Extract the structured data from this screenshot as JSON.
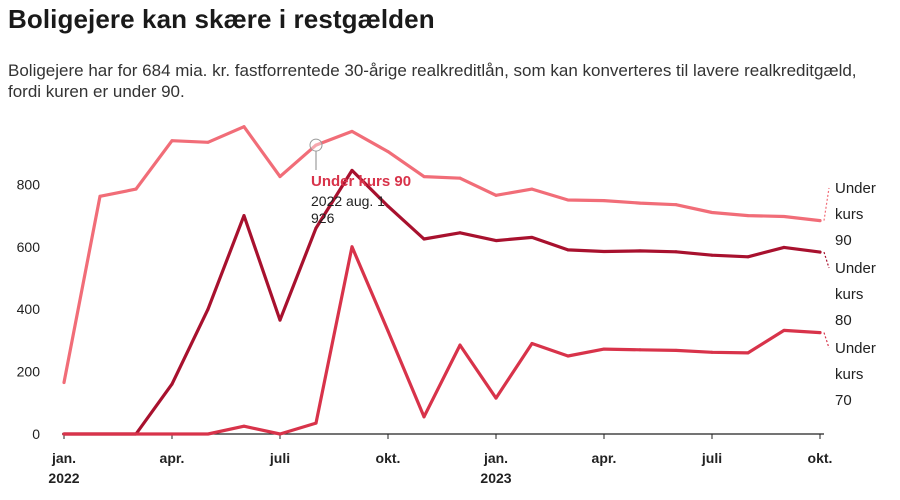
{
  "header": {
    "title": "Boligejere kan skære i restgælden",
    "subtitle": "Boligejere har for 684 mia. kr. fastforrentede 30-årige realkreditlån, som kan konverteres til lavere realkreditgæld, fordi kuren er under 90."
  },
  "tooltip": {
    "title": "Under kurs 90",
    "date": "2022 aug. 1",
    "value": "926"
  },
  "chart_data": {
    "type": "line",
    "title": "Boligejere kan skære i restgælden",
    "x": [
      "2022-01",
      "2022-02",
      "2022-03",
      "2022-04",
      "2022-05",
      "2022-06",
      "2022-07",
      "2022-08",
      "2022-09",
      "2022-10",
      "2022-11",
      "2022-12",
      "2023-01",
      "2023-02",
      "2023-03",
      "2023-04",
      "2023-05",
      "2023-06",
      "2023-07",
      "2023-08",
      "2023-09",
      "2023-10"
    ],
    "x_tick_labels": [
      {
        "x": "2022-01",
        "line1": "jan.",
        "line2": "2022"
      },
      {
        "x": "2022-04",
        "line1": "apr.",
        "line2": ""
      },
      {
        "x": "2022-07",
        "line1": "juli",
        "line2": ""
      },
      {
        "x": "2022-10",
        "line1": "okt.",
        "line2": ""
      },
      {
        "x": "2023-01",
        "line1": "jan.",
        "line2": "2023"
      },
      {
        "x": "2023-04",
        "line1": "apr.",
        "line2": ""
      },
      {
        "x": "2023-07",
        "line1": "juli",
        "line2": ""
      },
      {
        "x": "2023-10",
        "line1": "okt.",
        "line2": ""
      }
    ],
    "ylim": [
      0,
      1000
    ],
    "y_ticks": [
      0,
      200,
      400,
      600,
      800
    ],
    "grid": false,
    "series": [
      {
        "name": "Under kurs 90",
        "color": "#f16d78",
        "label_lines": [
          "Under",
          "kurs",
          "90"
        ],
        "values": [
          165,
          762,
          785,
          940,
          935,
          985,
          825,
          926,
          970,
          905,
          825,
          820,
          765,
          785,
          750,
          748,
          740,
          735,
          710,
          700,
          697,
          684
        ]
      },
      {
        "name": "Under kurs 80",
        "color": "#a8112e",
        "label_lines": [
          "Under",
          "kurs",
          "80"
        ],
        "values": [
          0,
          0,
          0,
          160,
          400,
          700,
          365,
          660,
          845,
          730,
          625,
          645,
          620,
          630,
          590,
          585,
          587,
          584,
          573,
          568,
          598,
          583
        ]
      },
      {
        "name": "Under kurs 70",
        "color": "#d8334a",
        "label_lines": [
          "Under",
          "kurs",
          "70"
        ],
        "values": [
          0,
          0,
          0,
          0,
          0,
          25,
          0,
          35,
          600,
          330,
          55,
          285,
          115,
          290,
          250,
          272,
          270,
          268,
          262,
          260,
          332,
          325
        ]
      }
    ]
  }
}
